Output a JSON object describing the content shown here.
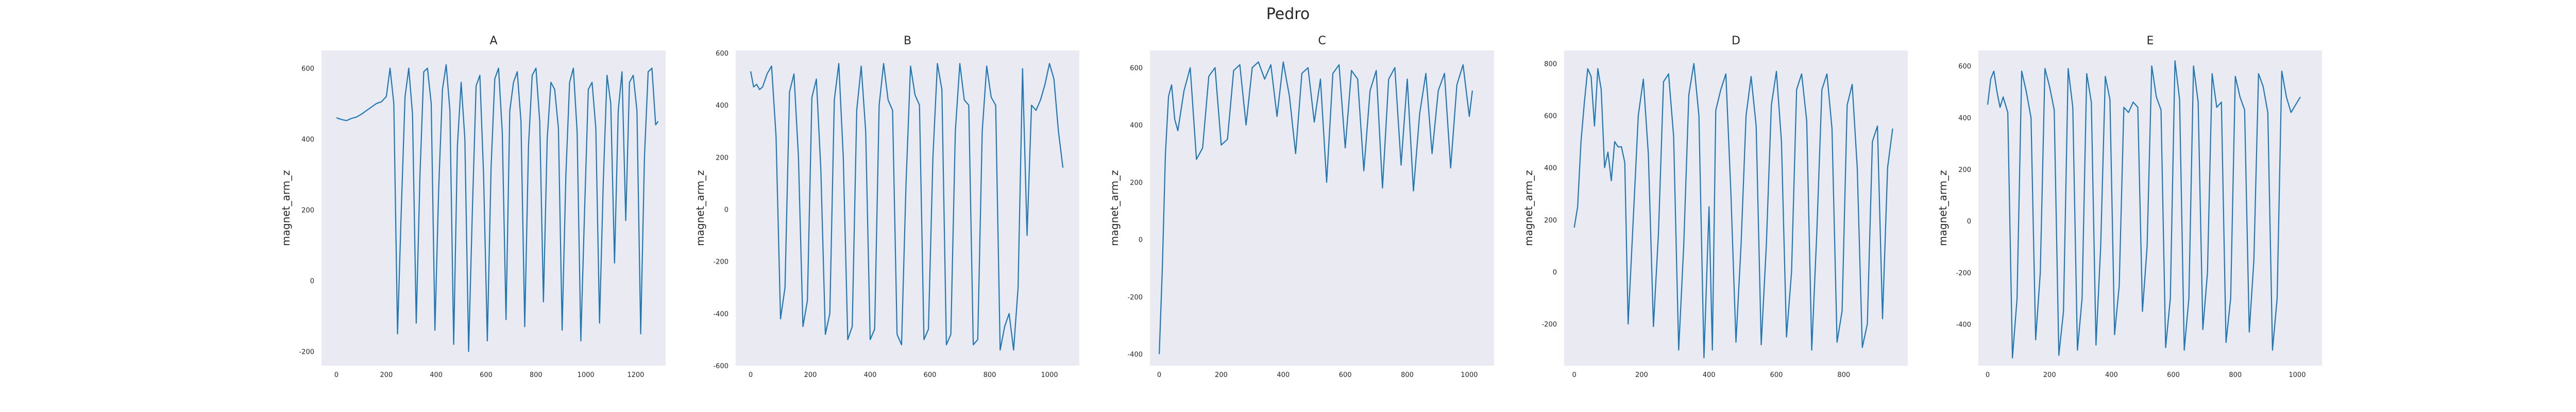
{
  "figure": {
    "title": "Pedro"
  },
  "chart_data": [
    {
      "type": "line",
      "title": "A",
      "xlabel": "",
      "ylabel": "magnet_arm_z",
      "xlim": [
        -60,
        1320
      ],
      "ylim": [
        -240,
        650
      ],
      "xticks": [
        0,
        200,
        400,
        600,
        800,
        1000,
        1200
      ],
      "yticks": [
        -200,
        0,
        200,
        400,
        600
      ],
      "grid": false,
      "line_color": "#1f77b4",
      "background": "#eaeaf2",
      "series": [
        {
          "x": [
            0,
            20,
            40,
            60,
            80,
            100,
            120,
            140,
            160,
            180,
            200,
            215,
            230,
            245,
            260,
            275,
            290,
            305,
            320,
            335,
            350,
            365,
            380,
            395,
            410,
            425,
            440,
            455,
            470,
            485,
            500,
            515,
            530,
            545,
            560,
            575,
            590,
            605,
            620,
            635,
            650,
            665,
            680,
            695,
            710,
            725,
            740,
            755,
            770,
            785,
            800,
            815,
            830,
            845,
            860,
            875,
            890,
            905,
            920,
            935,
            950,
            965,
            980,
            995,
            1010,
            1025,
            1040,
            1055,
            1070,
            1085,
            1100,
            1115,
            1130,
            1145,
            1160,
            1175,
            1190,
            1205,
            1220,
            1235,
            1250,
            1265,
            1280,
            1290
          ],
          "y": [
            460,
            455,
            452,
            458,
            462,
            470,
            480,
            490,
            500,
            505,
            520,
            600,
            500,
            -150,
            200,
            520,
            600,
            470,
            -120,
            300,
            590,
            600,
            500,
            -140,
            260,
            540,
            610,
            480,
            -180,
            380,
            560,
            400,
            -200,
            200,
            550,
            580,
            300,
            -170,
            320,
            570,
            600,
            420,
            -110,
            480,
            560,
            590,
            450,
            -130,
            380,
            580,
            600,
            450,
            -60,
            400,
            560,
            540,
            430,
            -140,
            300,
            560,
            600,
            420,
            -170,
            200,
            540,
            560,
            430,
            -120,
            280,
            580,
            500,
            50,
            480,
            590,
            170,
            560,
            580,
            480,
            -150,
            350,
            590,
            600,
            440,
            450
          ]
        }
      ]
    },
    {
      "type": "line",
      "title": "B",
      "xlabel": "",
      "ylabel": "magnet_arm_z",
      "xlim": [
        -50,
        1100
      ],
      "ylim": [
        -600,
        610
      ],
      "xticks": [
        0,
        200,
        400,
        600,
        800,
        1000
      ],
      "yticks": [
        -600,
        -400,
        -200,
        0,
        200,
        400,
        600
      ],
      "grid": false,
      "line_color": "#1f77b4",
      "background": "#eaeaf2",
      "series": [
        {
          "x": [
            0,
            10,
            20,
            30,
            40,
            55,
            70,
            85,
            100,
            115,
            130,
            145,
            160,
            175,
            190,
            205,
            220,
            235,
            250,
            265,
            280,
            295,
            310,
            325,
            340,
            355,
            370,
            385,
            400,
            415,
            430,
            445,
            460,
            475,
            490,
            505,
            520,
            535,
            550,
            565,
            580,
            595,
            610,
            625,
            640,
            655,
            670,
            685,
            700,
            715,
            730,
            745,
            760,
            775,
            790,
            805,
            820,
            835,
            850,
            865,
            880,
            895,
            910,
            925,
            940,
            955,
            970,
            985,
            1000,
            1015,
            1030,
            1045
          ],
          "y": [
            530,
            470,
            480,
            460,
            470,
            520,
            550,
            280,
            -420,
            -300,
            450,
            520,
            200,
            -450,
            -350,
            430,
            500,
            150,
            -480,
            -400,
            420,
            560,
            200,
            -500,
            -450,
            380,
            550,
            300,
            -500,
            -460,
            400,
            560,
            420,
            380,
            -480,
            -520,
            100,
            550,
            440,
            400,
            -500,
            -460,
            200,
            560,
            460,
            -520,
            -480,
            300,
            560,
            420,
            400,
            -520,
            -500,
            300,
            550,
            430,
            400,
            -540,
            -450,
            -400,
            -540,
            -300,
            540,
            -100,
            400,
            380,
            420,
            480,
            560,
            500,
            300,
            160
          ]
        }
      ]
    },
    {
      "type": "line",
      "title": "C",
      "xlabel": "",
      "ylabel": "magnet_arm_z",
      "xlim": [
        -30,
        1080
      ],
      "ylim": [
        -440,
        660
      ],
      "xticks": [
        0,
        200,
        400,
        600,
        800,
        1000
      ],
      "yticks": [
        -400,
        -200,
        0,
        200,
        400,
        600
      ],
      "grid": false,
      "line_color": "#1f77b4",
      "background": "#eaeaf2",
      "series": [
        {
          "x": [
            0,
            10,
            20,
            30,
            40,
            50,
            60,
            70,
            80,
            100,
            120,
            140,
            160,
            180,
            200,
            220,
            240,
            260,
            280,
            300,
            320,
            340,
            360,
            380,
            400,
            420,
            440,
            460,
            480,
            500,
            520,
            540,
            560,
            580,
            600,
            620,
            640,
            660,
            680,
            700,
            720,
            740,
            760,
            780,
            800,
            820,
            840,
            860,
            880,
            900,
            920,
            940,
            960,
            980,
            1000,
            1010
          ],
          "y": [
            -400,
            -100,
            300,
            500,
            540,
            420,
            380,
            450,
            520,
            600,
            280,
            320,
            570,
            600,
            330,
            350,
            590,
            610,
            400,
            600,
            620,
            560,
            610,
            430,
            620,
            500,
            300,
            580,
            600,
            410,
            560,
            200,
            580,
            610,
            320,
            590,
            560,
            240,
            520,
            590,
            180,
            560,
            600,
            260,
            560,
            170,
            440,
            580,
            300,
            520,
            580,
            250,
            540,
            610,
            430,
            520
          ]
        }
      ]
    },
    {
      "type": "line",
      "title": "D",
      "xlabel": "",
      "ylabel": "magnet_arm_z",
      "xlim": [
        -30,
        990
      ],
      "ylim": [
        -360,
        850
      ],
      "xticks": [
        0,
        200,
        400,
        600,
        800
      ],
      "yticks": [
        -200,
        0,
        200,
        400,
        600,
        800
      ],
      "grid": false,
      "line_color": "#1f77b4",
      "background": "#eaeaf2",
      "series": [
        {
          "x": [
            0,
            10,
            20,
            30,
            40,
            50,
            60,
            70,
            80,
            90,
            100,
            110,
            120,
            130,
            140,
            150,
            160,
            175,
            190,
            205,
            220,
            235,
            250,
            265,
            280,
            295,
            310,
            325,
            340,
            355,
            370,
            385,
            400,
            410,
            420,
            435,
            450,
            465,
            480,
            495,
            510,
            525,
            540,
            555,
            570,
            585,
            600,
            615,
            630,
            645,
            660,
            675,
            690,
            705,
            720,
            735,
            750,
            765,
            780,
            795,
            810,
            825,
            840,
            855,
            870,
            885,
            900,
            915,
            930,
            945
          ],
          "y": [
            170,
            250,
            500,
            650,
            780,
            750,
            560,
            780,
            700,
            400,
            460,
            350,
            500,
            480,
            480,
            420,
            -200,
            200,
            600,
            740,
            450,
            -210,
            150,
            730,
            760,
            520,
            -300,
            100,
            680,
            800,
            600,
            -330,
            250,
            -300,
            620,
            700,
            760,
            300,
            -270,
            100,
            600,
            750,
            560,
            -280,
            100,
            640,
            770,
            500,
            -250,
            0,
            700,
            760,
            580,
            -300,
            150,
            700,
            760,
            550,
            -270,
            -150,
            640,
            720,
            400,
            -290,
            -200,
            500,
            560,
            -180,
            400,
            550
          ]
        }
      ]
    },
    {
      "type": "line",
      "title": "E",
      "xlabel": "",
      "ylabel": "magnet_arm_z",
      "xlim": [
        -30,
        1080
      ],
      "ylim": [
        -560,
        660
      ],
      "xticks": [
        0,
        200,
        400,
        600,
        800,
        1000
      ],
      "yticks": [
        -400,
        -200,
        0,
        200,
        400,
        600
      ],
      "grid": false,
      "line_color": "#1f77b4",
      "background": "#eaeaf2",
      "series": [
        {
          "x": [
            0,
            10,
            20,
            30,
            40,
            50,
            65,
            80,
            95,
            110,
            125,
            140,
            155,
            170,
            185,
            200,
            215,
            230,
            245,
            260,
            275,
            290,
            305,
            320,
            335,
            350,
            365,
            380,
            395,
            410,
            425,
            440,
            455,
            470,
            485,
            500,
            515,
            530,
            545,
            560,
            575,
            590,
            605,
            620,
            635,
            650,
            665,
            680,
            695,
            710,
            725,
            740,
            755,
            770,
            785,
            800,
            815,
            830,
            845,
            860,
            875,
            890,
            905,
            920,
            935,
            950,
            965,
            980,
            995,
            1010
          ],
          "y": [
            450,
            550,
            580,
            500,
            440,
            480,
            420,
            -530,
            -300,
            580,
            500,
            400,
            -460,
            -200,
            590,
            520,
            430,
            -520,
            -350,
            590,
            440,
            -500,
            -300,
            570,
            460,
            -480,
            -100,
            560,
            470,
            -440,
            -250,
            440,
            420,
            460,
            440,
            -350,
            -100,
            600,
            480,
            430,
            -490,
            -300,
            620,
            470,
            -500,
            -300,
            600,
            460,
            -420,
            -200,
            570,
            440,
            460,
            -470,
            -300,
            560,
            480,
            430,
            -430,
            -150,
            570,
            520,
            420,
            -500,
            -300,
            580,
            480,
            420,
            450,
            480
          ]
        }
      ]
    }
  ]
}
